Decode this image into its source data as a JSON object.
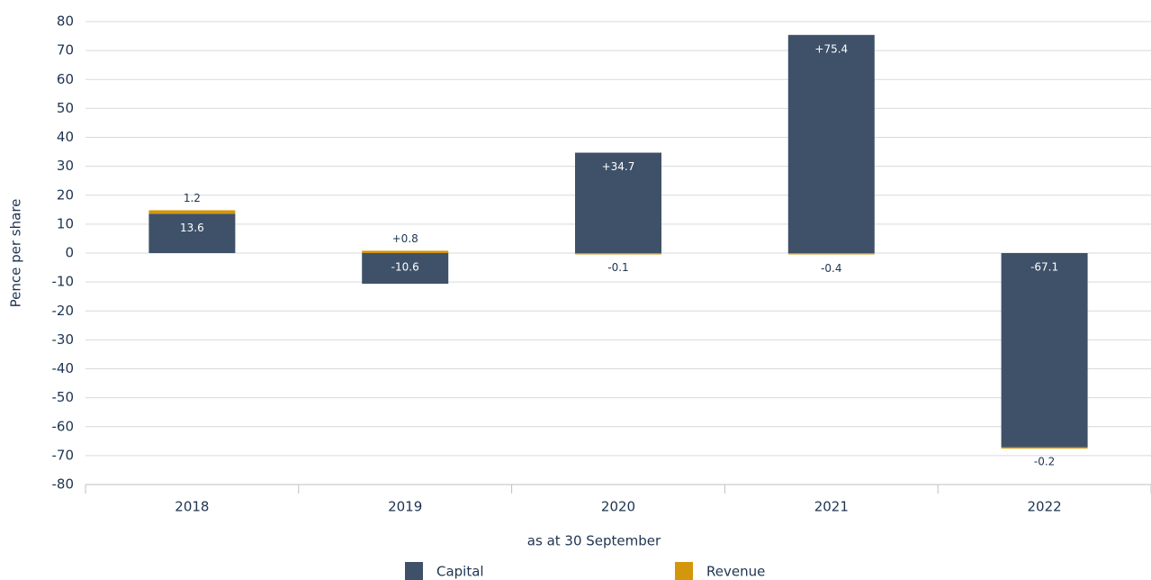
{
  "chart_data": {
    "type": "bar",
    "stacked": true,
    "categories": [
      "2018",
      "2019",
      "2020",
      "2021",
      "2022"
    ],
    "series": [
      {
        "name": "Capital",
        "color": "#3e5169",
        "values": [
          13.6,
          -10.6,
          34.7,
          75.4,
          -67.1
        ],
        "value_labels": [
          "13.6",
          "-10.6",
          "+34.7",
          "+75.4",
          "-67.1"
        ]
      },
      {
        "name": "Revenue",
        "color": "#d4960a",
        "values": [
          1.2,
          0.8,
          -0.1,
          -0.4,
          -0.2
        ],
        "value_labels": [
          "1.2",
          "+0.8",
          "-0.1",
          "-0.4",
          "-0.2"
        ]
      }
    ],
    "ylabel": "Pence per share",
    "xlabel": "as at 30 September",
    "ylim": [
      -80,
      80
    ],
    "yticks": [
      -80,
      -70,
      -60,
      -50,
      -40,
      -30,
      -20,
      -10,
      0,
      10,
      20,
      30,
      40,
      50,
      60,
      70,
      80
    ],
    "grid": true,
    "legend": "bottom"
  }
}
